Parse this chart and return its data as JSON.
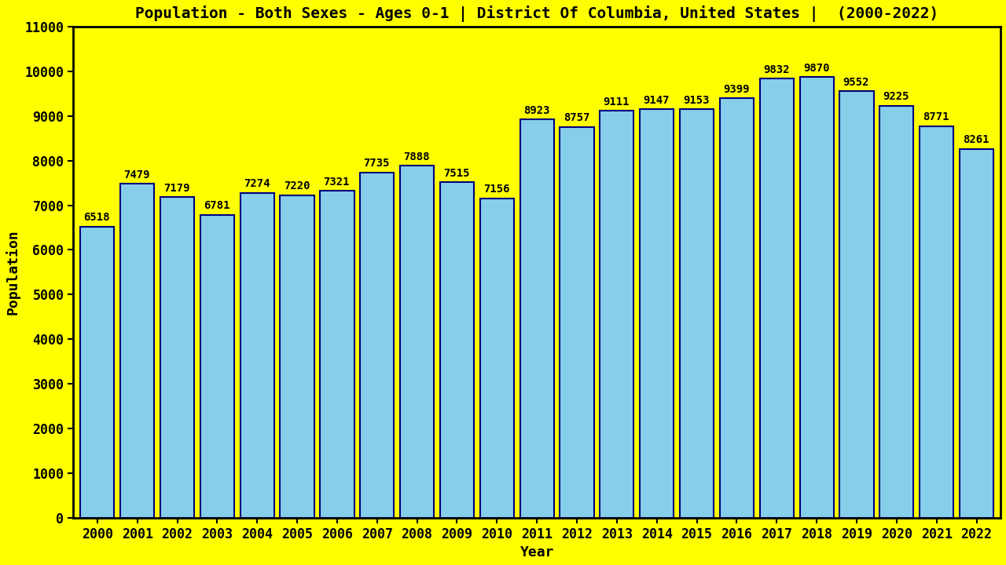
{
  "title": "Population - Both Sexes - Ages 0-1 | District Of Columbia, United States |  (2000-2022)",
  "xlabel": "Year",
  "ylabel": "Population",
  "background_color": "#FFFF00",
  "bar_color": "#87CEEB",
  "bar_edge_color": "#000080",
  "years": [
    2000,
    2001,
    2002,
    2003,
    2004,
    2005,
    2006,
    2007,
    2008,
    2009,
    2010,
    2011,
    2012,
    2013,
    2014,
    2015,
    2016,
    2017,
    2018,
    2019,
    2020,
    2021,
    2022
  ],
  "values": [
    6518,
    7479,
    7179,
    6781,
    7274,
    7220,
    7321,
    7735,
    7888,
    7515,
    7156,
    8923,
    8757,
    9111,
    9147,
    9153,
    9399,
    9832,
    9870,
    9552,
    9225,
    8771,
    8261
  ],
  "ylim": [
    0,
    11000
  ],
  "yticks": [
    0,
    1000,
    2000,
    3000,
    4000,
    5000,
    6000,
    7000,
    8000,
    9000,
    10000,
    11000
  ],
  "title_fontsize": 14,
  "axis_label_fontsize": 13,
  "tick_fontsize": 12,
  "value_label_fontsize": 10,
  "bar_width": 0.85
}
